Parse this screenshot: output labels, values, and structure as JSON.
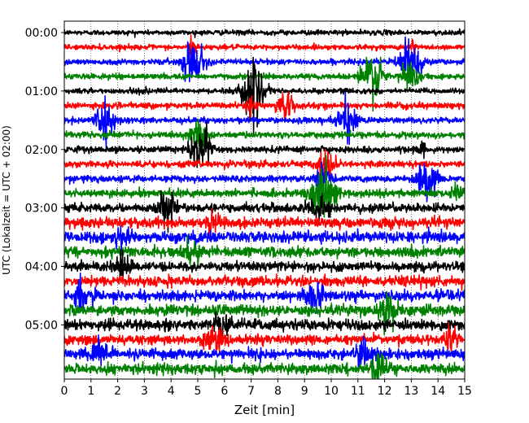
{
  "chart_data": {
    "type": "line",
    "xlabel": "Zeit  [min]",
    "ylabel": "UTC (Lokalzeit = UTC + 02:00)",
    "xlim": [
      0,
      15
    ],
    "x_ticks": [
      0,
      1,
      2,
      3,
      4,
      5,
      6,
      7,
      8,
      9,
      10,
      11,
      12,
      13,
      14,
      15
    ],
    "y_tick_labels": [
      "00:00",
      "01:00",
      "02:00",
      "03:00",
      "04:00",
      "05:00"
    ],
    "row_interval_minutes": 15,
    "row_count": 24,
    "grid": "vertical dotted lines at each minute",
    "color_cycle": [
      "#000000",
      "#ff0000",
      "#0000ff",
      "#008000"
    ],
    "series_note": "24 stacked 15-minute seismogram traces, one per row, colors cycling black, red, blue, green",
    "noise_level_by_row": [
      0.3,
      0.3,
      0.32,
      0.32,
      0.32,
      0.34,
      0.34,
      0.36,
      0.36,
      0.38,
      0.4,
      0.42,
      0.48,
      0.6,
      0.65,
      0.58,
      0.52,
      0.58,
      0.58,
      0.62,
      0.62,
      0.55,
      0.6,
      0.62
    ],
    "events": [
      {
        "row": 1,
        "x": 4.8,
        "amp": 1.3,
        "dur": 0.12
      },
      {
        "row": 2,
        "x": 4.85,
        "amp": 2.8,
        "dur": 0.35
      },
      {
        "row": 1,
        "x": 13.05,
        "amp": 1.2,
        "dur": 0.1
      },
      {
        "row": 2,
        "x": 12.95,
        "amp": 2.6,
        "dur": 0.4
      },
      {
        "row": 3,
        "x": 11.5,
        "amp": 3.0,
        "dur": 0.4
      },
      {
        "row": 3,
        "x": 12.9,
        "amp": 1.8,
        "dur": 0.3
      },
      {
        "row": 4,
        "x": 7.05,
        "amp": 3.2,
        "dur": 0.4
      },
      {
        "row": 5,
        "x": 8.3,
        "amp": 1.7,
        "dur": 0.3
      },
      {
        "row": 5,
        "x": 7.0,
        "amp": 1.0,
        "dur": 0.15
      },
      {
        "row": 6,
        "x": 1.5,
        "amp": 2.0,
        "dur": 0.35
      },
      {
        "row": 6,
        "x": 10.6,
        "amp": 2.0,
        "dur": 0.35
      },
      {
        "row": 7,
        "x": 5.05,
        "amp": 1.8,
        "dur": 0.3
      },
      {
        "row": 8,
        "x": 5.1,
        "amp": 2.4,
        "dur": 0.4
      },
      {
        "row": 8,
        "x": 13.4,
        "amp": 0.9,
        "dur": 0.15
      },
      {
        "row": 9,
        "x": 9.8,
        "amp": 1.8,
        "dur": 0.3
      },
      {
        "row": 10,
        "x": 13.6,
        "amp": 2.2,
        "dur": 0.35
      },
      {
        "row": 10,
        "x": 9.7,
        "amp": 1.4,
        "dur": 0.25
      },
      {
        "row": 11,
        "x": 9.75,
        "amp": 3.2,
        "dur": 0.45
      },
      {
        "row": 11,
        "x": 14.75,
        "amp": 1.2,
        "dur": 0.2
      },
      {
        "row": 12,
        "x": 3.85,
        "amp": 1.5,
        "dur": 0.35
      },
      {
        "row": 12,
        "x": 9.5,
        "amp": 1.3,
        "dur": 0.35
      },
      {
        "row": 13,
        "x": 5.5,
        "amp": 1.2,
        "dur": 0.3
      },
      {
        "row": 14,
        "x": 2.2,
        "amp": 1.0,
        "dur": 0.3
      },
      {
        "row": 15,
        "x": 4.8,
        "amp": 1.2,
        "dur": 0.3
      },
      {
        "row": 16,
        "x": 2.15,
        "amp": 1.3,
        "dur": 0.35
      },
      {
        "row": 18,
        "x": 0.7,
        "amp": 1.6,
        "dur": 0.3
      },
      {
        "row": 18,
        "x": 9.35,
        "amp": 1.6,
        "dur": 0.3
      },
      {
        "row": 19,
        "x": 12.1,
        "amp": 1.5,
        "dur": 0.3
      },
      {
        "row": 20,
        "x": 5.9,
        "amp": 1.5,
        "dur": 0.3
      },
      {
        "row": 21,
        "x": 5.7,
        "amp": 1.6,
        "dur": 0.3
      },
      {
        "row": 21,
        "x": 14.5,
        "amp": 1.5,
        "dur": 0.25
      },
      {
        "row": 22,
        "x": 1.3,
        "amp": 1.5,
        "dur": 0.3
      },
      {
        "row": 22,
        "x": 11.2,
        "amp": 1.4,
        "dur": 0.3
      },
      {
        "row": 23,
        "x": 11.8,
        "amp": 1.4,
        "dur": 0.3
      }
    ]
  }
}
